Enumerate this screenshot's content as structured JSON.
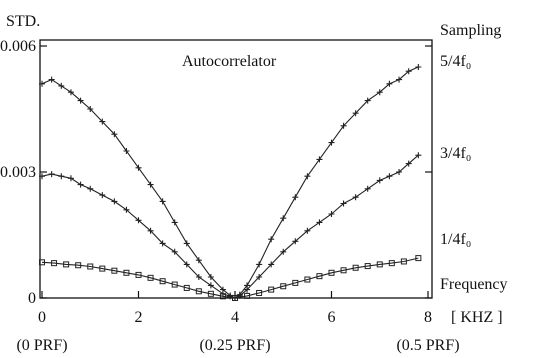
{
  "chart_data": {
    "type": "scatter",
    "title": "Autocorrelator",
    "ylabel": "STD.",
    "xlabel": "[ KHZ ]",
    "right_label_top": "Sampling",
    "right_label_bottom": "Frequency",
    "xlim": [
      0,
      8
    ],
    "ylim": [
      0,
      0.006
    ],
    "grid": false,
    "x_ticks": [
      {
        "value": 0,
        "label": "0",
        "sublabel": "(0 PRF)"
      },
      {
        "value": 2,
        "label": "2",
        "sublabel": ""
      },
      {
        "value": 4,
        "label": "4",
        "sublabel": "(0.25 PRF)"
      },
      {
        "value": 6,
        "label": "6",
        "sublabel": ""
      },
      {
        "value": 8,
        "label": "8",
        "sublabel": "(0.5 PRF)"
      }
    ],
    "y_ticks": [
      {
        "value": 0,
        "label": "0"
      },
      {
        "value": 0.003,
        "label": "0.003"
      },
      {
        "value": 0.006,
        "label": "0.006"
      }
    ],
    "series": [
      {
        "name": "5/4f₀",
        "marker": "plus",
        "x": [
          0,
          0.2,
          0.4,
          0.6,
          0.8,
          1.0,
          1.25,
          1.5,
          1.75,
          2.0,
          2.25,
          2.5,
          2.75,
          3.0,
          3.25,
          3.5,
          3.75,
          3.9,
          4.0,
          4.1,
          4.25,
          4.5,
          4.75,
          5.0,
          5.25,
          5.5,
          5.75,
          6.0,
          6.25,
          6.5,
          6.75,
          7.0,
          7.2,
          7.4,
          7.6,
          7.8
        ],
        "y": [
          0.0051,
          0.0052,
          0.00505,
          0.0049,
          0.0047,
          0.0045,
          0.0042,
          0.0039,
          0.0035,
          0.0031,
          0.0027,
          0.0023,
          0.0018,
          0.0013,
          0.0009,
          0.0005,
          0.0002,
          6e-05,
          0.0,
          8e-05,
          0.0003,
          0.0008,
          0.0014,
          0.0019,
          0.0024,
          0.0029,
          0.0033,
          0.0037,
          0.0041,
          0.0044,
          0.0047,
          0.0049,
          0.0051,
          0.0052,
          0.0054,
          0.0055
        ]
      },
      {
        "name": "3/4f₀",
        "marker": "plus",
        "x": [
          0,
          0.2,
          0.4,
          0.6,
          0.8,
          1.0,
          1.25,
          1.5,
          1.75,
          2.0,
          2.25,
          2.5,
          2.75,
          3.0,
          3.25,
          3.5,
          3.75,
          3.9,
          4.0,
          4.1,
          4.25,
          4.5,
          4.75,
          5.0,
          5.25,
          5.5,
          5.75,
          6.0,
          6.25,
          6.5,
          6.75,
          7.0,
          7.2,
          7.4,
          7.6,
          7.8
        ],
        "y": [
          0.0029,
          0.00295,
          0.0029,
          0.00285,
          0.0027,
          0.0026,
          0.00245,
          0.0023,
          0.0021,
          0.00185,
          0.0016,
          0.0013,
          0.0011,
          0.0008,
          0.0005,
          0.0003,
          0.0001,
          4e-05,
          0.0,
          5e-05,
          0.0002,
          0.0005,
          0.0008,
          0.0011,
          0.00135,
          0.0016,
          0.0018,
          0.002,
          0.00225,
          0.0024,
          0.0026,
          0.0028,
          0.0029,
          0.003,
          0.0032,
          0.0034
        ]
      },
      {
        "name": "1/4f₀",
        "marker": "square",
        "x": [
          0,
          0.25,
          0.5,
          0.75,
          1.0,
          1.25,
          1.5,
          1.75,
          2.0,
          2.25,
          2.5,
          2.75,
          3.0,
          3.25,
          3.5,
          3.75,
          4.0,
          4.25,
          4.5,
          4.75,
          5.0,
          5.25,
          5.5,
          5.75,
          6.0,
          6.25,
          6.5,
          6.75,
          7.0,
          7.25,
          7.5,
          7.8
        ],
        "y": [
          0.00085,
          0.00083,
          0.0008,
          0.00078,
          0.00075,
          0.0007,
          0.00065,
          0.0006,
          0.00055,
          0.00048,
          0.0004,
          0.00032,
          0.00024,
          0.00016,
          0.0001,
          4e-05,
          0.0,
          5e-05,
          0.00012,
          0.0002,
          0.00028,
          0.00036,
          0.00044,
          0.00052,
          0.0006,
          0.00066,
          0.00072,
          0.00076,
          0.0008,
          0.00083,
          0.00087,
          0.00095
        ]
      }
    ]
  }
}
